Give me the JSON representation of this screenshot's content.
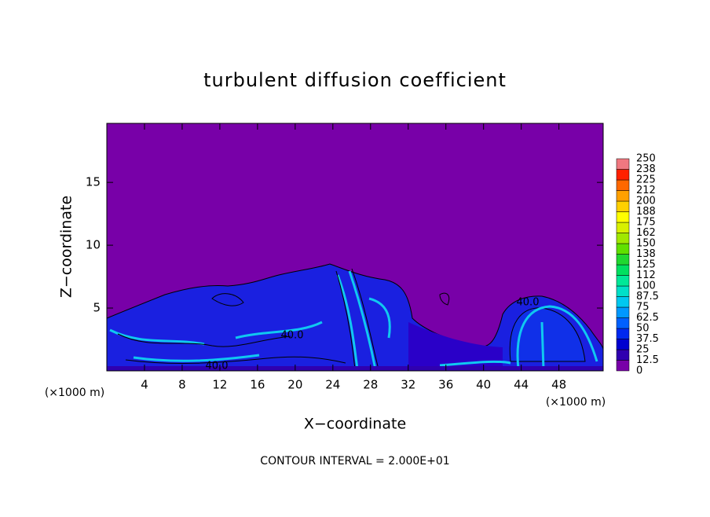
{
  "chart_data": {
    "type": "contour",
    "title": "turbulent diffusion coefficient",
    "xlabel": "X−coordinate",
    "ylabel": "Z−coordinate",
    "x_unit_label": "(×1000 m)",
    "footnote": "CONTOUR INTERVAL = 2.000E+01",
    "xlim": [
      0,
      52.7
    ],
    "xticks": [
      4,
      8,
      12,
      16,
      20,
      24,
      28,
      32,
      36,
      40,
      44,
      48
    ],
    "ylim": [
      0,
      19.7
    ],
    "yticks": [
      5,
      10,
      15
    ],
    "levels": [
      0,
      12.5,
      25,
      37.5,
      50,
      62.5,
      75,
      87.5,
      100,
      112,
      125,
      138,
      150,
      162,
      175,
      188,
      200,
      212,
      225,
      238,
      250
    ],
    "colors": [
      "#7800a8",
      "#3000b0",
      "#0000d0",
      "#0028f0",
      "#0060ff",
      "#0098ff",
      "#00c8f0",
      "#00e0c8",
      "#00e898",
      "#00e060",
      "#20d830",
      "#60e000",
      "#a0e800",
      "#d8f000",
      "#ffff00",
      "#ffd000",
      "#ffa000",
      "#ff6800",
      "#ff2000",
      "#f07880"
    ],
    "contour_labels": [
      "40.0",
      "40.0",
      "40.0"
    ]
  }
}
